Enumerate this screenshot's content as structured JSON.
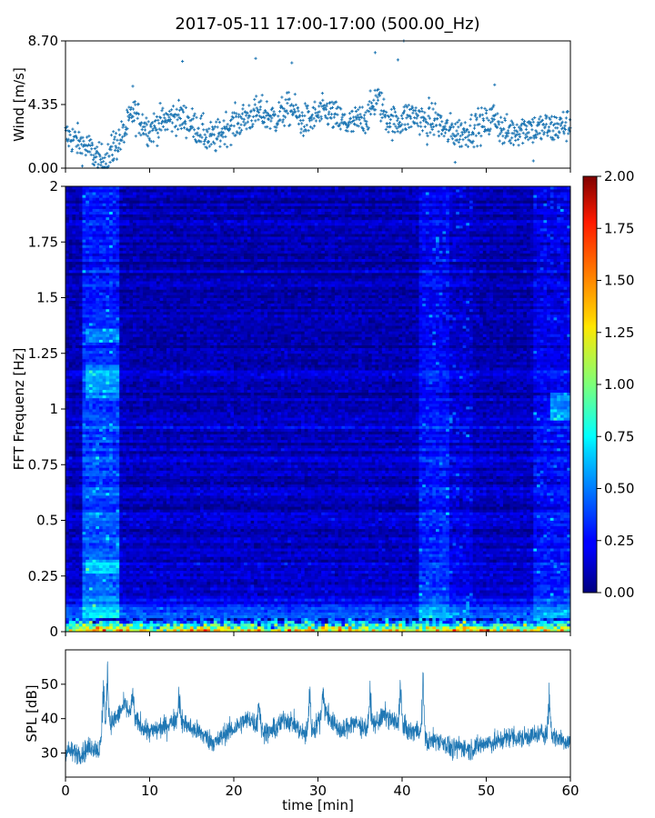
{
  "title": "2017-05-11 17:00-17:00 (500.00_Hz)",
  "chart_data": [
    {
      "type": "scatter",
      "name": "wind",
      "xlabel": "",
      "ylabel": "Wind [m/s]",
      "xlim": [
        0,
        60
      ],
      "ylim": [
        0,
        8.7
      ],
      "yticks": [
        "0.00",
        "4.35",
        "8.70"
      ],
      "marker": "+",
      "color": "#1f77b4",
      "profile": {
        "t": [
          0,
          1,
          2,
          3,
          4,
          5,
          6,
          7,
          8,
          9,
          10,
          11,
          12,
          13,
          14,
          15,
          16,
          17,
          18,
          19,
          20,
          21,
          22,
          23,
          24,
          25,
          26,
          27,
          28,
          29,
          30,
          31,
          32,
          33,
          34,
          35,
          36,
          37,
          38,
          39,
          40,
          41,
          42,
          43,
          44,
          45,
          46,
          47,
          48,
          49,
          50,
          51,
          52,
          53,
          54,
          55,
          56,
          57,
          58,
          59,
          60
        ],
        "v": [
          2.2,
          2.0,
          1.6,
          1.2,
          0.5,
          0.6,
          1.6,
          2.4,
          3.8,
          3.2,
          2.6,
          3.0,
          3.3,
          3.5,
          3.4,
          3.0,
          2.6,
          2.0,
          2.1,
          2.8,
          3.0,
          3.3,
          3.6,
          3.8,
          3.6,
          3.4,
          3.9,
          4.1,
          3.2,
          3.3,
          3.6,
          3.9,
          3.5,
          3.1,
          3.0,
          3.3,
          3.6,
          4.9,
          3.6,
          3.1,
          3.3,
          3.6,
          3.5,
          2.9,
          3.4,
          2.6,
          2.5,
          2.4,
          2.6,
          2.9,
          3.0,
          3.6,
          2.4,
          2.5,
          2.7,
          2.8,
          2.6,
          2.8,
          2.7,
          2.9,
          3.0
        ]
      },
      "peaks": [
        {
          "t": 5.7,
          "v": 2.5
        },
        {
          "t": 8.0,
          "v": 5.6
        },
        {
          "t": 13.9,
          "v": 7.3
        },
        {
          "t": 22.6,
          "v": 7.5
        },
        {
          "t": 26.9,
          "v": 7.2
        },
        {
          "t": 36.8,
          "v": 7.9
        },
        {
          "t": 39.5,
          "v": 7.4
        },
        {
          "t": 40.2,
          "v": 8.7
        },
        {
          "t": 43.2,
          "v": 4.8
        },
        {
          "t": 46.3,
          "v": 0.4
        },
        {
          "t": 51.0,
          "v": 5.7
        },
        {
          "t": 55.6,
          "v": 0.5
        }
      ]
    },
    {
      "type": "heatmap",
      "name": "spectrogram",
      "xlabel": "",
      "ylabel": "FFT Frequenz [Hz]",
      "xlim": [
        0,
        60
      ],
      "ylim": [
        0,
        2
      ],
      "yticks": [
        "0",
        "0.25",
        "0.5",
        "0.75",
        "1",
        "1.25",
        "1.5",
        "1.75",
        "2"
      ],
      "colorbar": {
        "range": [
          0,
          2
        ],
        "ticks": [
          "0.00",
          "0.25",
          "0.50",
          "0.75",
          "1.00",
          "1.25",
          "1.50",
          "1.75",
          "2.00"
        ],
        "colormap": "jet"
      },
      "bands": [
        {
          "t_start": 2.0,
          "t_end": 6.3,
          "level": 0.45
        },
        {
          "t_start": 41.9,
          "t_end": 45.6,
          "level": 0.35
        },
        {
          "t_start": 45.6,
          "t_end": 48.5,
          "level": 0.22
        },
        {
          "t_start": 55.5,
          "t_end": 60.0,
          "level": 0.3
        }
      ],
      "background_level": 0.15,
      "low_freq_level": 1.2
    },
    {
      "type": "line",
      "name": "spl",
      "xlabel": "time [min]",
      "ylabel": "SPL [dB]",
      "xlim": [
        0,
        60
      ],
      "ylim": [
        23,
        60
      ],
      "yticks": [
        "30",
        "40",
        "50"
      ],
      "xticks": [
        "0",
        "10",
        "20",
        "30",
        "40",
        "50",
        "60"
      ],
      "color": "#1f77b4",
      "profile": {
        "t": [
          0,
          1,
          2,
          3,
          4,
          5,
          6,
          7,
          8,
          9,
          10,
          11,
          12,
          13,
          14,
          15,
          16,
          17,
          18,
          19,
          20,
          21,
          22,
          23,
          24,
          25,
          26,
          27,
          28,
          29,
          30,
          31,
          32,
          33,
          34,
          35,
          36,
          37,
          38,
          39,
          40,
          41,
          42,
          43,
          44,
          45,
          46,
          47,
          48,
          49,
          50,
          51,
          52,
          53,
          54,
          55,
          56,
          57,
          58,
          59,
          60
        ],
        "v": [
          31,
          30,
          30,
          32,
          31,
          38,
          40,
          44,
          40,
          38,
          36,
          37,
          38,
          40,
          39,
          37,
          36,
          34,
          33,
          36,
          37,
          39,
          40,
          37,
          36,
          37,
          40,
          39,
          36,
          35,
          39,
          42,
          38,
          36,
          39,
          38,
          37,
          39,
          41,
          39,
          38,
          36,
          37,
          33,
          34,
          33,
          31,
          32,
          31,
          32,
          33,
          33,
          34,
          35,
          34,
          35,
          35,
          36,
          35,
          34,
          33
        ]
      },
      "peaks": [
        {
          "t": 4.5,
          "v": 55
        },
        {
          "t": 5.0,
          "v": 58
        },
        {
          "t": 8.0,
          "v": 50
        },
        {
          "t": 13.5,
          "v": 49
        },
        {
          "t": 23.0,
          "v": 48
        },
        {
          "t": 29.0,
          "v": 52
        },
        {
          "t": 30.6,
          "v": 51
        },
        {
          "t": 36.2,
          "v": 51
        },
        {
          "t": 39.8,
          "v": 52
        },
        {
          "t": 42.5,
          "v": 53
        },
        {
          "t": 57.5,
          "v": 50
        }
      ]
    }
  ]
}
